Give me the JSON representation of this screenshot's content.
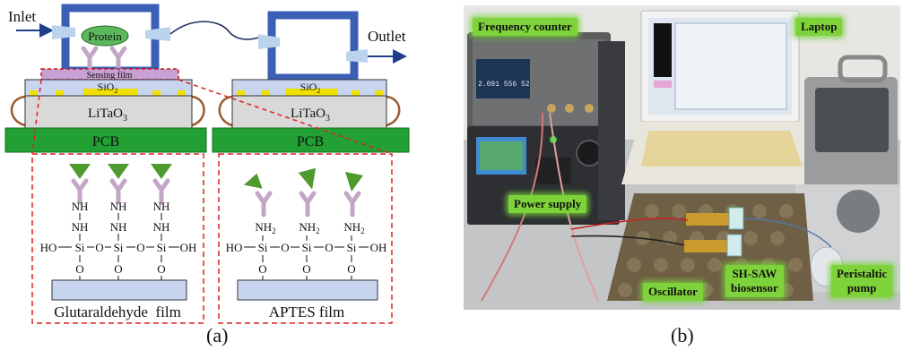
{
  "panel_a": {
    "inlet": "Inlet",
    "outlet": "Outlet",
    "protein": "Protein",
    "sensing_film": "Sensing film",
    "sio2": "SiO",
    "sio2_sub": "2",
    "litao3": "LiTaO",
    "litao3_sub": "3",
    "pcb": "PCB",
    "glut_film": "Glutaraldehyde  film",
    "aptes_film": "APTES film",
    "chem": {
      "nh": "NH",
      "nh2": "NH",
      "sub2": "2",
      "ho": "HO",
      "si": "Si",
      "o": "O",
      "oh": "OH"
    },
    "caption": "(a)"
  },
  "panel_b": {
    "labels": {
      "frequency_counter": "Frequency counter",
      "laptop": "Laptop",
      "power_supply": "Power supply",
      "oscillator": "Oscillator",
      "shsaw_line1": "SH-SAW",
      "shsaw_line2": "biosensor",
      "pump_line1": "Peristaltic",
      "pump_line2": "pump"
    },
    "counter_display": "2.091 556 52",
    "caption": "(b)"
  },
  "colors": {
    "cell_blue": "#3b5fb5",
    "protein_green": "#5cb85c",
    "pcb_green": "#22a033",
    "sio2_fill": "#c7d6ee",
    "litao3_fill": "#d9d9d9",
    "electrode_yellow": "#f0e000",
    "dash_red": "#e02020",
    "antibody": "#c3a6c6",
    "antigen": "#4e9a2e",
    "label_green": "#7fd33a"
  }
}
